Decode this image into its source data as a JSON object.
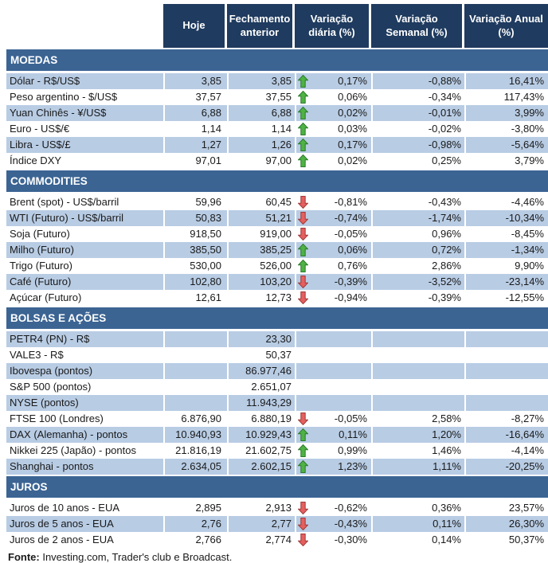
{
  "colors": {
    "header_bg": "#1F3B5F",
    "section_bg": "#3B6493",
    "band_bg": "#B8CCE4",
    "text": "#1A1A1A",
    "up_fill": "#4FB244",
    "up_stroke": "#2B7A2B",
    "down_fill": "#E4605F",
    "down_stroke": "#9E3A38"
  },
  "chart_data": {
    "type": "table",
    "columns": [
      "Hoje",
      "Fechamento anterior",
      "Variação diária (%)",
      "Variação Semanal (%)",
      "Variação Anual (%)"
    ],
    "sections": [
      {
        "title": "MOEDAS",
        "rows": [
          {
            "label": "Dólar - R$/US$",
            "hoje": "3,85",
            "fechamento": "3,85",
            "arrow": "up",
            "diaria": "0,17%",
            "semanal": "-0,88%",
            "anual": "16,41%",
            "shaded": true
          },
          {
            "label": "Peso argentino - $/US$",
            "hoje": "37,57",
            "fechamento": "37,55",
            "arrow": "up",
            "diaria": "0,06%",
            "semanal": "-0,34%",
            "anual": "117,43%",
            "shaded": false
          },
          {
            "label": "Yuan Chinês - ¥/US$",
            "hoje": "6,88",
            "fechamento": "6,88",
            "arrow": "up",
            "diaria": "0,02%",
            "semanal": "-0,01%",
            "anual": "3,99%",
            "shaded": true
          },
          {
            "label": "Euro - US$/€",
            "hoje": "1,14",
            "fechamento": "1,14",
            "arrow": "up",
            "diaria": "0,03%",
            "semanal": "-0,02%",
            "anual": "-3,80%",
            "shaded": false
          },
          {
            "label": "Libra - US$/£",
            "hoje": "1,27",
            "fechamento": "1,26",
            "arrow": "up",
            "diaria": "0,17%",
            "semanal": "-0,98%",
            "anual": "-5,64%",
            "shaded": true
          },
          {
            "label": "Índice DXY",
            "hoje": "97,01",
            "fechamento": "97,00",
            "arrow": "up",
            "diaria": "0,02%",
            "semanal": "0,25%",
            "anual": "3,79%",
            "shaded": false
          }
        ]
      },
      {
        "title": "COMMODITIES",
        "rows": [
          {
            "label": "Brent (spot) - US$/barril",
            "hoje": "59,96",
            "fechamento": "60,45",
            "arrow": "down",
            "diaria": "-0,81%",
            "semanal": "-0,43%",
            "anual": "-4,46%",
            "shaded": false
          },
          {
            "label": "WTI (Futuro) - US$/barril",
            "hoje": "50,83",
            "fechamento": "51,21",
            "arrow": "down",
            "diaria": "-0,74%",
            "semanal": "-1,74%",
            "anual": "-10,34%",
            "shaded": true
          },
          {
            "label": "Soja (Futuro)",
            "hoje": "918,50",
            "fechamento": "919,00",
            "arrow": "down",
            "diaria": "-0,05%",
            "semanal": "0,96%",
            "anual": "-8,45%",
            "shaded": false
          },
          {
            "label": "Milho (Futuro)",
            "hoje": "385,50",
            "fechamento": "385,25",
            "arrow": "up",
            "diaria": "0,06%",
            "semanal": "0,72%",
            "anual": "-1,34%",
            "shaded": true
          },
          {
            "label": "Trigo (Futuro)",
            "hoje": "530,00",
            "fechamento": "526,00",
            "arrow": "up",
            "diaria": "0,76%",
            "semanal": "2,86%",
            "anual": "9,90%",
            "shaded": false
          },
          {
            "label": "Café (Futuro)",
            "hoje": "102,80",
            "fechamento": "103,20",
            "arrow": "down",
            "diaria": "-0,39%",
            "semanal": "-3,52%",
            "anual": "-23,14%",
            "shaded": true
          },
          {
            "label": "Açúcar (Futuro)",
            "hoje": "12,61",
            "fechamento": "12,73",
            "arrow": "down",
            "diaria": "-0,94%",
            "semanal": "-0,39%",
            "anual": "-12,55%",
            "shaded": false
          }
        ]
      },
      {
        "title": "BOLSAS E AÇÕES",
        "rows": [
          {
            "label": "PETR4 (PN) - R$",
            "hoje": "",
            "fechamento": "23,30",
            "arrow": "",
            "diaria": "",
            "semanal": "",
            "anual": "",
            "shaded": true
          },
          {
            "label": "VALE3 - R$",
            "hoje": "",
            "fechamento": "50,37",
            "arrow": "",
            "diaria": "",
            "semanal": "",
            "anual": "",
            "shaded": false
          },
          {
            "label": "Ibovespa (pontos)",
            "hoje": "",
            "fechamento": "86.977,46",
            "arrow": "",
            "diaria": "",
            "semanal": "",
            "anual": "",
            "shaded": true
          },
          {
            "label": "S&P 500 (pontos)",
            "hoje": "",
            "fechamento": "2.651,07",
            "arrow": "",
            "diaria": "",
            "semanal": "",
            "anual": "",
            "shaded": false
          },
          {
            "label": "NYSE (pontos)",
            "hoje": "",
            "fechamento": "11.943,29",
            "arrow": "",
            "diaria": "",
            "semanal": "",
            "anual": "",
            "shaded": true
          },
          {
            "label": "FTSE 100 (Londres)",
            "hoje": "6.876,90",
            "fechamento": "6.880,19",
            "arrow": "down",
            "diaria": "-0,05%",
            "semanal": "2,58%",
            "anual": "-8,27%",
            "shaded": false
          },
          {
            "label": "DAX (Alemanha) - pontos",
            "hoje": "10.940,93",
            "fechamento": "10.929,43",
            "arrow": "up",
            "diaria": "0,11%",
            "semanal": "1,20%",
            "anual": "-16,64%",
            "shaded": true
          },
          {
            "label": "Nikkei 225 (Japão) - pontos",
            "hoje": "21.816,19",
            "fechamento": "21.602,75",
            "arrow": "up",
            "diaria": "0,99%",
            "semanal": "1,46%",
            "anual": "-4,14%",
            "shaded": false
          },
          {
            "label": "Shanghai - pontos",
            "hoje": "2.634,05",
            "fechamento": "2.602,15",
            "arrow": "up",
            "diaria": "1,23%",
            "semanal": "1,11%",
            "anual": "-20,25%",
            "shaded": true
          }
        ]
      },
      {
        "title": "JUROS",
        "rows": [
          {
            "label": "Juros de 10 anos - EUA",
            "hoje": "2,895",
            "fechamento": "2,913",
            "arrow": "down",
            "diaria": "-0,62%",
            "semanal": "0,36%",
            "anual": "23,57%",
            "shaded": false
          },
          {
            "label": "Juros de 5 anos - EUA",
            "hoje": "2,76",
            "fechamento": "2,77",
            "arrow": "down",
            "diaria": "-0,43%",
            "semanal": "0,11%",
            "anual": "26,30%",
            "shaded": true
          },
          {
            "label": "Juros de 2 anos - EUA",
            "hoje": "2,766",
            "fechamento": "2,774",
            "arrow": "down",
            "diaria": "-0,30%",
            "semanal": "0,14%",
            "anual": "50,37%",
            "shaded": false
          }
        ]
      }
    ]
  },
  "footer": {
    "label": "Fonte:",
    "text": " Investing.com, Trader's club e Broadcast."
  }
}
